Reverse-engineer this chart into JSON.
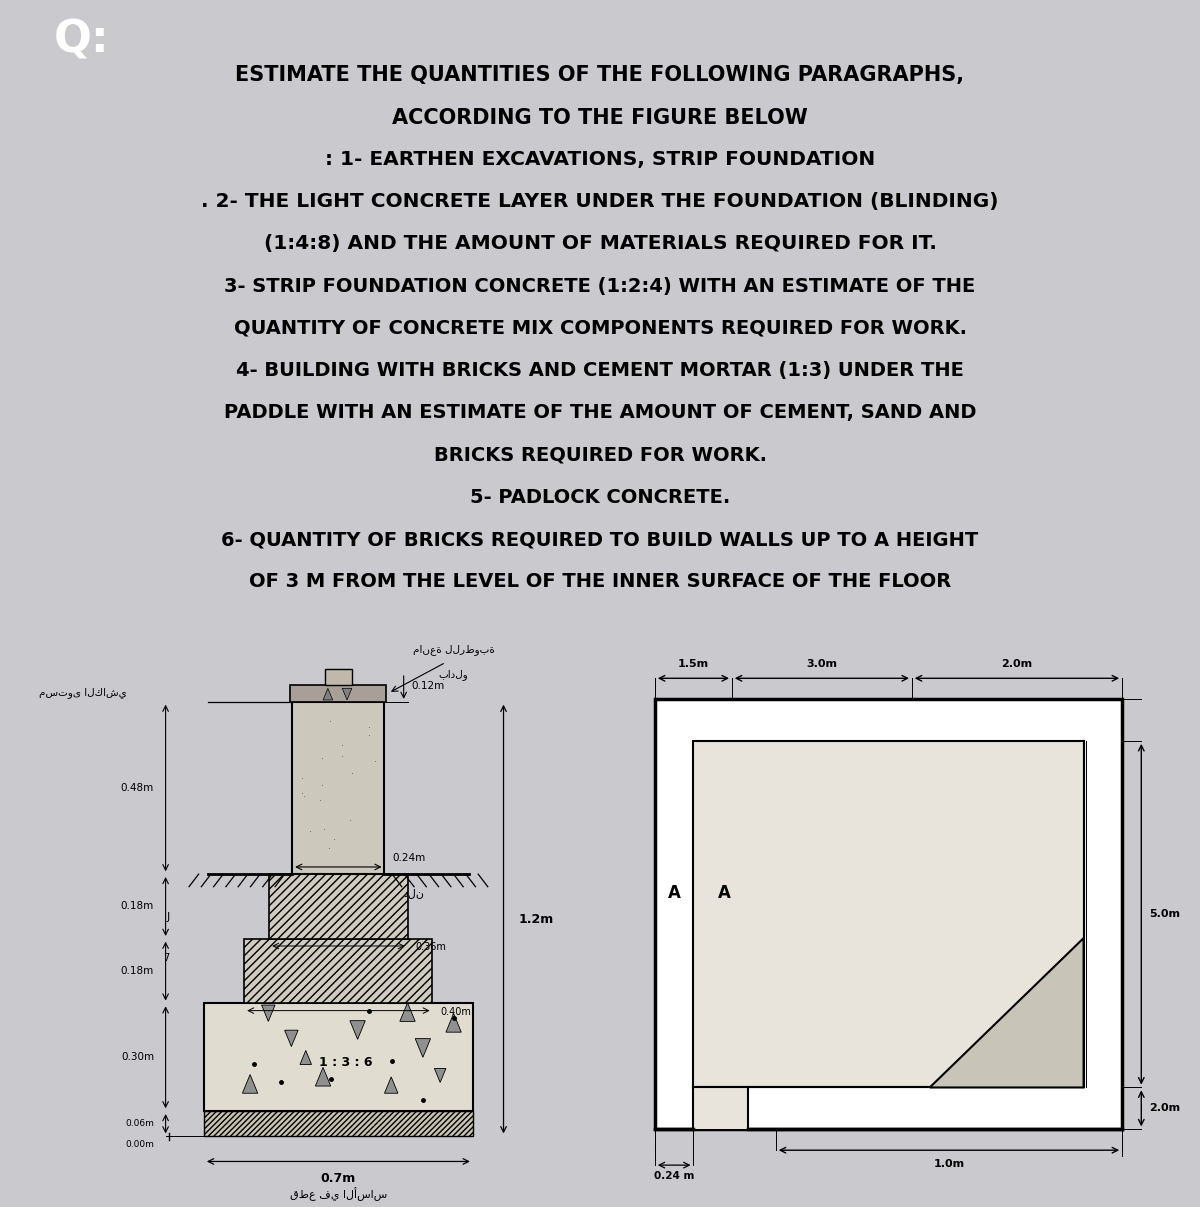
{
  "bg_color": "#c9c9ce",
  "title_q": "Q:",
  "text_lines": [
    "ESTIMATE THE QUANTITIES OF THE FOLLOWING PARAGRAPHS,",
    "ACCORDING TO THE FIGURE BELOW",
    ": 1- EARTHEN EXCAVATIONS, STRIP FOUNDATION",
    ". 2- THE LIGHT CONCRETE LAYER UNDER THE FOUNDATION (BLINDING)",
    "(1:4:8) AND THE AMOUNT OF MATERIALS REQUIRED FOR IT.",
    "3- STRIP FOUNDATION CONCRETE (1:2:4) WITH AN ESTIMATE OF THE",
    "QUANTITY OF CONCRETE MIX COMPONENTS REQUIRED FOR WORK.",
    "4- BUILDING WITH BRICKS AND CEMENT MORTAR (1:3) UNDER THE",
    "PADDLE WITH AN ESTIMATE OF THE AMOUNT OF CEMENT, SAND AND",
    "BRICKS REQUIRED FOR WORK.",
    "5- PADLOCK CONCRETE.",
    "6- QUANTITY OF BRICKS REQUIRED TO BUILD WALLS UP TO A HEIGHT",
    "OF 3 M FROM THE LEVEL OF THE INNER SURFACE OF THE FLOOR"
  ],
  "text_aligns": [
    "center",
    "center",
    "center",
    "left",
    "center",
    "center",
    "center",
    "center",
    "center",
    "center",
    "center",
    "center",
    "center"
  ],
  "left_diagram_bg": "#e8e4dc",
  "right_diagram_bg": "#e8e4dc",
  "arabic_tile_level": "مستوى الكاشي",
  "arabic_paddle_label": "مانعة للرطوبة",
  "arabic_paddle_label2": "بادلو",
  "arabic_ground": "دلن",
  "arabic_section": "قطع في الأساس"
}
